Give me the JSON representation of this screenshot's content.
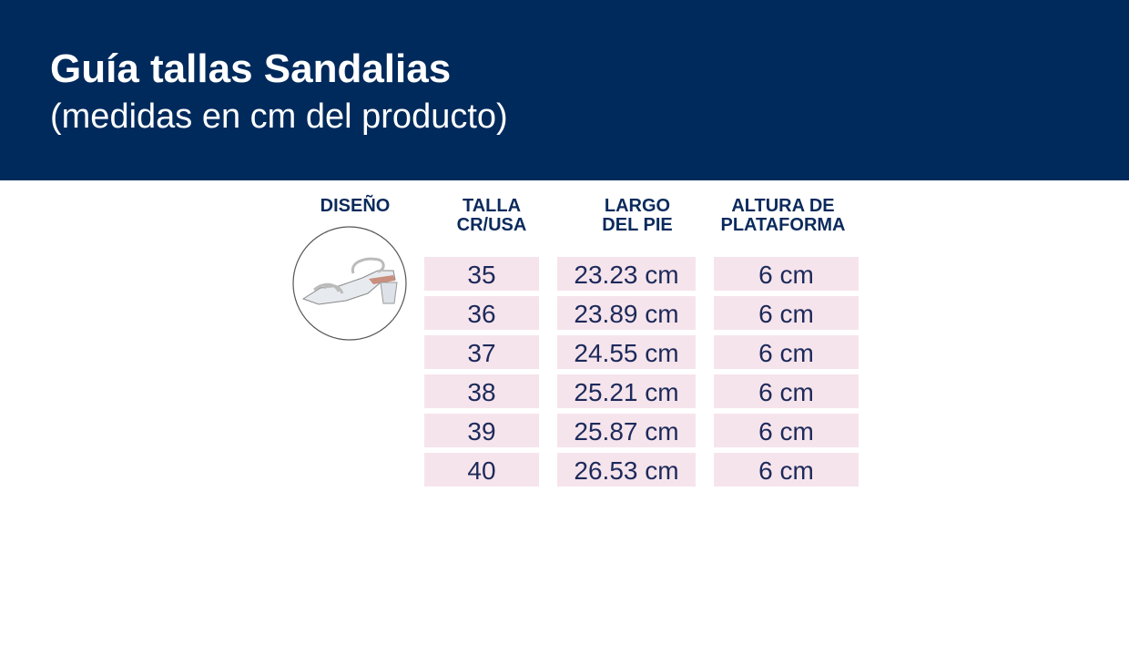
{
  "header": {
    "title": "Guía tallas Sandalias",
    "subtitle": "(medidas en cm del producto)"
  },
  "table": {
    "columns": [
      [
        "DISEÑO"
      ],
      [
        "TALLA",
        "CR/USA"
      ],
      [
        "LARGO",
        "DEL PIE"
      ],
      [
        "ALTURA DE",
        "PLATAFORMA"
      ]
    ],
    "rows": [
      [
        "35",
        "23.23 cm",
        "6 cm"
      ],
      [
        "36",
        "23.89 cm",
        "6 cm"
      ],
      [
        "37",
        "24.55 cm",
        "6 cm"
      ],
      [
        "38",
        "25.21 cm",
        "6 cm"
      ],
      [
        "39",
        "25.87 cm",
        "6 cm"
      ],
      [
        "40",
        "26.53 cm",
        "6 cm"
      ]
    ]
  }
}
